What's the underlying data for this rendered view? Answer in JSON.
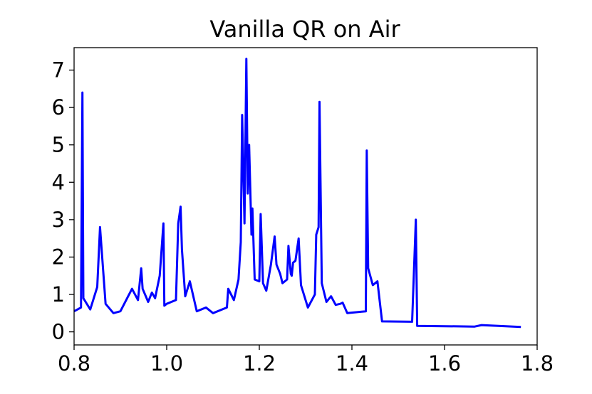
{
  "chart_data": {
    "type": "line",
    "title": "Vanilla QR on Air",
    "xlabel": "",
    "ylabel": "",
    "xlim": [
      0.8,
      1.8
    ],
    "ylim": [
      -0.35,
      7.6
    ],
    "x_ticks": [
      0.8,
      1.0,
      1.2,
      1.4,
      1.6,
      1.8
    ],
    "x_tick_labels": [
      "0.8",
      "1.0",
      "1.2",
      "1.4",
      "1.6",
      "1.8"
    ],
    "y_ticks": [
      0,
      1,
      2,
      3,
      4,
      5,
      6,
      7
    ],
    "y_tick_labels": [
      "0",
      "1",
      "2",
      "3",
      "4",
      "5",
      "6",
      "7"
    ],
    "grid": false,
    "legend": "none",
    "series": [
      {
        "color": "#0000ff",
        "x": [
          0.8,
          0.815,
          0.818,
          0.82,
          0.835,
          0.85,
          0.856,
          0.868,
          0.885,
          0.9,
          0.925,
          0.938,
          0.945,
          0.948,
          0.96,
          0.968,
          0.975,
          0.985,
          0.993,
          0.995,
          1.0,
          1.02,
          1.025,
          1.03,
          1.033,
          1.04,
          1.05,
          1.065,
          1.085,
          1.1,
          1.13,
          1.133,
          1.145,
          1.155,
          1.16,
          1.163,
          1.168,
          1.172,
          1.175,
          1.178,
          1.183,
          1.185,
          1.19,
          1.2,
          1.203,
          1.208,
          1.215,
          1.225,
          1.233,
          1.237,
          1.245,
          1.25,
          1.26,
          1.263,
          1.268,
          1.27,
          1.273,
          1.278,
          1.285,
          1.29,
          1.305,
          1.32,
          1.323,
          1.328,
          1.33,
          1.335,
          1.345,
          1.355,
          1.365,
          1.375,
          1.38,
          1.39,
          1.43,
          1.432,
          1.435,
          1.445,
          1.455,
          1.465,
          1.53,
          1.538,
          1.541,
          1.665,
          1.68,
          1.765
        ],
        "y": [
          0.55,
          0.65,
          6.4,
          0.9,
          0.6,
          1.2,
          2.8,
          0.75,
          0.5,
          0.55,
          1.15,
          0.85,
          1.7,
          1.15,
          0.8,
          1.05,
          0.9,
          1.5,
          2.9,
          0.7,
          0.75,
          0.85,
          2.9,
          3.35,
          2.2,
          0.95,
          1.35,
          0.55,
          0.65,
          0.5,
          0.65,
          1.15,
          0.85,
          1.4,
          2.4,
          5.8,
          2.9,
          7.3,
          3.7,
          5.0,
          2.6,
          3.3,
          1.4,
          1.35,
          3.15,
          1.3,
          1.1,
          1.8,
          2.55,
          1.8,
          1.55,
          1.3,
          1.4,
          2.3,
          1.55,
          1.5,
          1.85,
          1.9,
          2.5,
          1.25,
          0.65,
          1.0,
          2.6,
          2.8,
          6.15,
          1.3,
          0.8,
          0.95,
          0.72,
          0.75,
          0.78,
          0.5,
          0.55,
          4.85,
          1.7,
          1.25,
          1.35,
          0.28,
          0.27,
          3.0,
          0.16,
          0.14,
          0.18,
          0.13
        ]
      }
    ]
  }
}
